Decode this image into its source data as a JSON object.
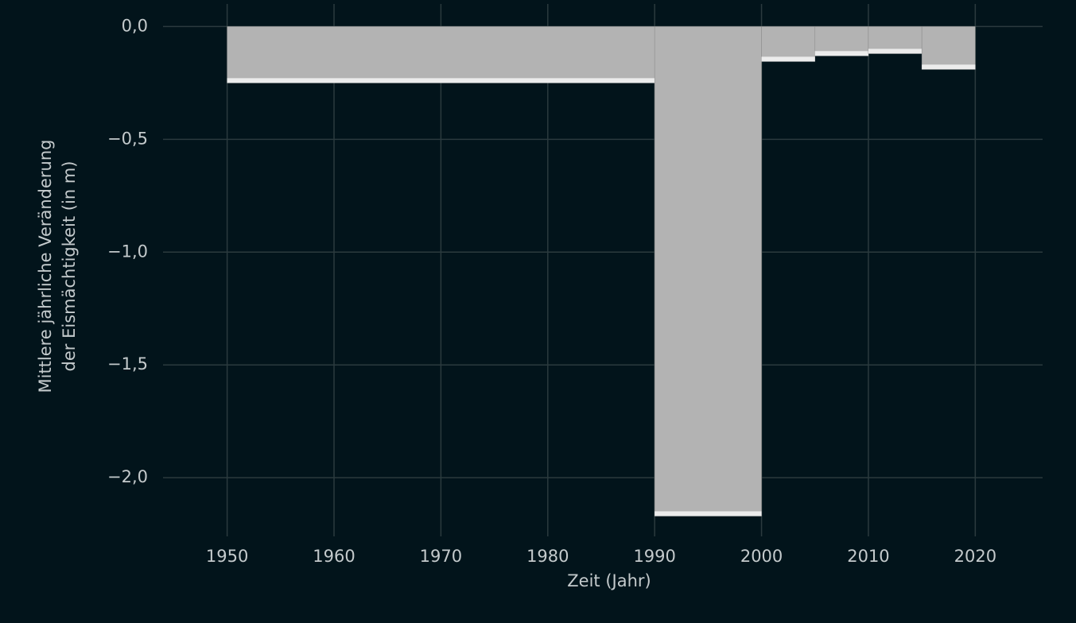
{
  "chart_data": {
    "type": "histogram",
    "xlabel": "Zeit (Jahr)",
    "ylabel": [
      "Mittlere jährliche Veränderung",
      "der Eismächtigkeit (in m)"
    ],
    "bins": [
      1950,
      1990,
      2000,
      2005,
      2010,
      2015,
      2020
    ],
    "values": [
      -0.25,
      -2.17,
      -0.155,
      -0.13,
      -0.12,
      -0.19
    ],
    "color": "#b3b3b3",
    "edge_color": "#ececec",
    "xlim": [
      1944,
      2026.3
    ],
    "ylim": [
      -2.26,
      0.1
    ],
    "xticks": [
      1950,
      1960,
      1970,
      1980,
      1990,
      2000,
      2010,
      2020
    ],
    "yticks": [
      {
        "value": 0,
        "label": "0,0"
      },
      {
        "value": -0.5,
        "label": "−0,5"
      },
      {
        "value": -1,
        "label": "−1,0"
      },
      {
        "value": -1.5,
        "label": "−1,5"
      },
      {
        "value": -2,
        "label": "−2,0"
      }
    ],
    "grid": true
  }
}
